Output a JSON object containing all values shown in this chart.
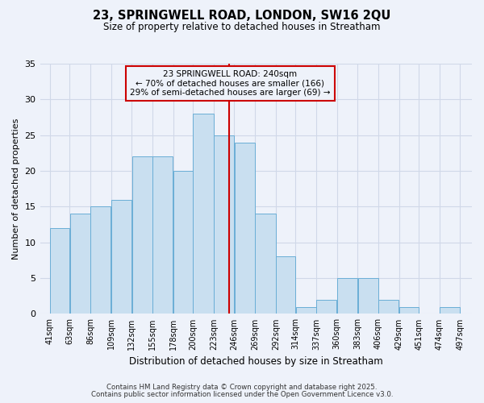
{
  "title1": "23, SPRINGWELL ROAD, LONDON, SW16 2QU",
  "title2": "Size of property relative to detached houses in Streatham",
  "xlabel": "Distribution of detached houses by size in Streatham",
  "ylabel": "Number of detached properties",
  "bar_left_edges": [
    41,
    63,
    86,
    109,
    132,
    155,
    178,
    200,
    223,
    246,
    269,
    292,
    314,
    337,
    360,
    383,
    406,
    429,
    451,
    474
  ],
  "bar_widths": [
    22,
    23,
    23,
    23,
    23,
    23,
    22,
    23,
    23,
    23,
    23,
    22,
    23,
    23,
    23,
    23,
    23,
    22,
    23,
    23
  ],
  "bar_heights": [
    12,
    14,
    15,
    16,
    22,
    22,
    20,
    28,
    25,
    24,
    14,
    8,
    1,
    2,
    5,
    5,
    2,
    1,
    0,
    1
  ],
  "bar_face_color": "#c9dff0",
  "bar_edge_color": "#6aaed6",
  "grid_color": "#d0d8e8",
  "background_color": "#eef2fa",
  "vline_x": 240,
  "vline_color": "#cc0000",
  "annotation_box_title": "23 SPRINGWELL ROAD: 240sqm",
  "annotation_line1": "← 70% of detached houses are smaller (166)",
  "annotation_line2": "29% of semi-detached houses are larger (69) →",
  "annotation_box_edge_color": "#cc0000",
  "tick_labels": [
    "41sqm",
    "63sqm",
    "86sqm",
    "109sqm",
    "132sqm",
    "155sqm",
    "178sqm",
    "200sqm",
    "223sqm",
    "246sqm",
    "269sqm",
    "292sqm",
    "314sqm",
    "337sqm",
    "360sqm",
    "383sqm",
    "406sqm",
    "429sqm",
    "451sqm",
    "474sqm",
    "497sqm"
  ],
  "tick_positions": [
    41,
    63,
    86,
    109,
    132,
    155,
    178,
    200,
    223,
    246,
    269,
    292,
    314,
    337,
    360,
    383,
    406,
    429,
    451,
    474,
    497
  ],
  "ylim": [
    0,
    35
  ],
  "xlim": [
    30,
    510
  ],
  "yticks": [
    0,
    5,
    10,
    15,
    20,
    25,
    30,
    35
  ],
  "footer1": "Contains HM Land Registry data © Crown copyright and database right 2025.",
  "footer2": "Contains public sector information licensed under the Open Government Licence v3.0."
}
